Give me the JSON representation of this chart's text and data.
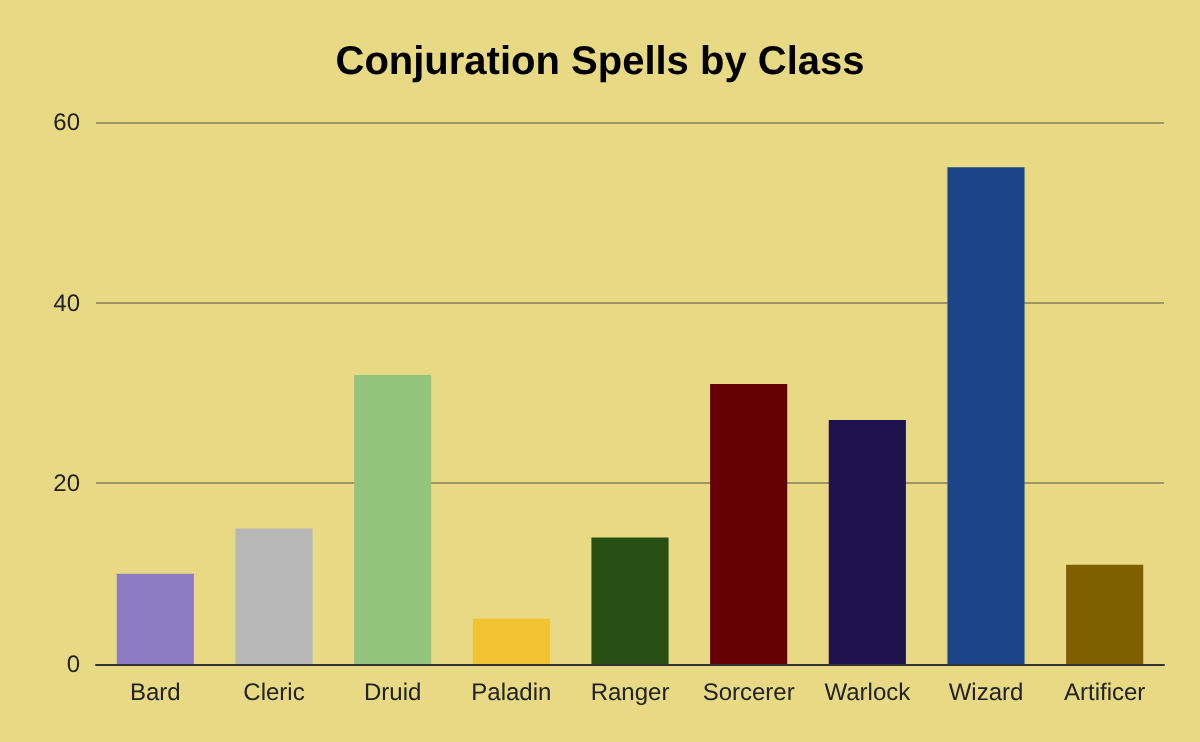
{
  "chart_data": {
    "type": "bar",
    "title": "Conjuration Spells by Class",
    "categories": [
      "Bard",
      "Cleric",
      "Druid",
      "Paladin",
      "Ranger",
      "Sorcerer",
      "Warlock",
      "Wizard",
      "Artificer"
    ],
    "values": [
      10,
      15,
      32,
      5,
      14,
      31,
      27,
      55,
      11
    ],
    "colors": [
      "#8e7cc3",
      "#b7b7b7",
      "#93c47d",
      "#f1c232",
      "#274e13",
      "#660000",
      "#20124d",
      "#1c4587",
      "#7f6000"
    ],
    "ylim": [
      0,
      60
    ],
    "yticks": [
      0,
      20,
      40,
      60
    ],
    "grid": "y"
  }
}
